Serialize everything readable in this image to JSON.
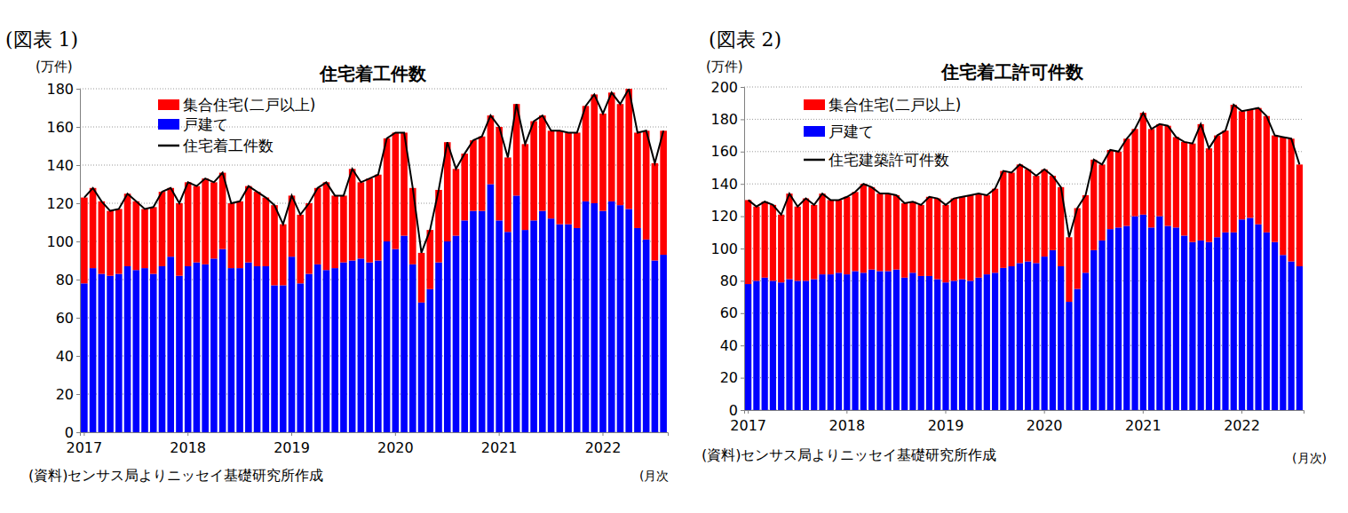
{
  "chart_data": [
    {
      "type": "bar",
      "stacked": true,
      "grid": true,
      "legend": "top-left",
      "figure_label": "(図表 1)",
      "title": "住宅着工件数",
      "y_label": "(万件)",
      "x_label": "(月次",
      "source": "(資料)センサス局よりニッセイ基礎研究所作成",
      "categories": [
        "2017",
        null,
        null,
        null,
        null,
        null,
        null,
        null,
        null,
        null,
        null,
        null,
        "2018",
        null,
        null,
        null,
        null,
        null,
        null,
        null,
        null,
        null,
        null,
        null,
        "2019",
        null,
        null,
        null,
        null,
        null,
        null,
        null,
        null,
        null,
        null,
        null,
        "2020",
        null,
        null,
        null,
        null,
        null,
        null,
        null,
        null,
        null,
        null,
        null,
        "2021",
        null,
        null,
        null,
        null,
        null,
        null,
        null,
        null,
        null,
        null,
        null,
        "2022",
        null,
        null,
        null,
        null,
        null,
        null,
        null
      ],
      "ylim": [
        0,
        180
      ],
      "yticks": [
        0,
        20,
        40,
        60,
        80,
        100,
        120,
        140,
        160,
        180
      ],
      "series": [
        {
          "name": "集合住宅(二戸以上)",
          "type": "bar",
          "color": "#ff0000",
          "values": [
            45,
            42,
            38,
            34,
            34,
            38,
            36,
            31,
            35,
            39,
            36,
            38,
            44,
            40,
            45,
            40,
            40,
            34,
            35,
            40,
            39,
            36,
            42,
            32,
            32,
            36,
            37,
            40,
            46,
            38,
            35,
            48,
            40,
            44,
            45,
            54,
            61,
            54,
            40,
            26,
            31,
            38,
            52,
            35,
            35,
            37,
            39,
            36,
            49,
            39,
            48,
            45,
            52,
            50,
            46,
            49,
            48,
            50,
            50,
            57,
            51,
            57,
            53,
            63,
            50,
            57,
            51,
            65
          ]
        },
        {
          "name": "戸建て",
          "type": "bar",
          "color": "#0000ff",
          "values": [
            78,
            86,
            83,
            82,
            83,
            87,
            85,
            86,
            83,
            87,
            92,
            82,
            87,
            89,
            88,
            91,
            96,
            86,
            86,
            89,
            87,
            87,
            77,
            77,
            92,
            78,
            83,
            88,
            85,
            86,
            89,
            90,
            91,
            89,
            90,
            100,
            96,
            103,
            88,
            68,
            75,
            89,
            100,
            103,
            111,
            116,
            116,
            130,
            111,
            105,
            124,
            106,
            111,
            116,
            112,
            109,
            109,
            107,
            121,
            120,
            116,
            121,
            119,
            117,
            107,
            101,
            90,
            93
          ]
        },
        {
          "name": "住宅着工件数",
          "type": "line",
          "color": "#000000",
          "values": [
            123,
            128,
            121,
            116,
            117,
            125,
            121,
            117,
            118,
            126,
            128,
            120,
            131,
            129,
            133,
            131,
            136,
            120,
            121,
            129,
            126,
            123,
            119,
            109,
            124,
            114,
            120,
            128,
            131,
            124,
            124,
            138,
            131,
            133,
            135,
            154,
            157,
            157,
            128,
            94,
            106,
            127,
            152,
            138,
            146,
            153,
            155,
            166,
            160,
            144,
            172,
            151,
            163,
            166,
            158,
            158,
            157,
            157,
            171,
            177,
            167,
            178,
            172,
            180,
            157,
            158,
            141,
            158
          ]
        }
      ]
    },
    {
      "type": "bar",
      "stacked": true,
      "grid": true,
      "legend": "top-left",
      "figure_label": "(図表 2)",
      "title": "住宅着工許可件数",
      "y_label": "(万件)",
      "x_label": "(月次)",
      "source": "(資料)センサス局よりニッセイ基礎研究所作成",
      "categories": [
        "2017",
        null,
        null,
        null,
        null,
        null,
        null,
        null,
        null,
        null,
        null,
        null,
        "2018",
        null,
        null,
        null,
        null,
        null,
        null,
        null,
        null,
        null,
        null,
        null,
        "2019",
        null,
        null,
        null,
        null,
        null,
        null,
        null,
        null,
        null,
        null,
        null,
        "2020",
        null,
        null,
        null,
        null,
        null,
        null,
        null,
        null,
        null,
        null,
        null,
        "2021",
        null,
        null,
        null,
        null,
        null,
        null,
        null,
        null,
        null,
        null,
        null,
        "2022",
        null,
        null,
        null,
        null,
        null,
        null,
        null
      ],
      "ylim": [
        0,
        200
      ],
      "yticks": [
        0,
        20,
        40,
        60,
        80,
        100,
        120,
        140,
        160,
        180,
        200
      ],
      "series": [
        {
          "name": "集合住宅(二戸以上)",
          "type": "bar",
          "color": "#ff0000",
          "values": [
            52,
            46,
            47,
            47,
            42,
            53,
            46,
            51,
            46,
            50,
            46,
            45,
            48,
            49,
            55,
            51,
            48,
            48,
            46,
            46,
            44,
            44,
            49,
            50,
            48,
            51,
            51,
            53,
            52,
            49,
            52,
            60,
            58,
            61,
            57,
            54,
            54,
            46,
            49,
            40,
            50,
            48,
            56,
            47,
            49,
            47,
            54,
            54,
            63,
            61,
            57,
            62,
            56,
            58,
            61,
            72,
            58,
            63,
            63,
            79,
            67,
            67,
            72,
            72,
            66,
            73,
            76,
            63
          ]
        },
        {
          "name": "戸建て",
          "type": "bar",
          "color": "#0000ff",
          "values": [
            78,
            80,
            82,
            80,
            79,
            81,
            80,
            80,
            81,
            84,
            84,
            85,
            84,
            86,
            85,
            87,
            86,
            86,
            87,
            82,
            85,
            83,
            83,
            81,
            79,
            80,
            81,
            80,
            82,
            84,
            85,
            88,
            89,
            91,
            92,
            91,
            95,
            99,
            89,
            67,
            75,
            85,
            99,
            105,
            112,
            113,
            114,
            120,
            121,
            113,
            120,
            114,
            113,
            108,
            104,
            105,
            104,
            107,
            110,
            110,
            118,
            119,
            115,
            110,
            104,
            96,
            92,
            89
          ]
        },
        {
          "name": "住宅建築許可件数",
          "type": "line",
          "color": "#000000",
          "values": [
            130,
            126,
            129,
            127,
            121,
            134,
            126,
            131,
            127,
            134,
            130,
            130,
            132,
            135,
            140,
            138,
            134,
            134,
            133,
            128,
            129,
            127,
            132,
            131,
            127,
            131,
            132,
            133,
            134,
            133,
            137,
            148,
            147,
            152,
            149,
            145,
            149,
            145,
            138,
            107,
            125,
            133,
            155,
            152,
            161,
            160,
            168,
            174,
            184,
            174,
            177,
            176,
            169,
            166,
            165,
            177,
            162,
            170,
            173,
            189,
            185,
            186,
            187,
            182,
            170,
            169,
            168,
            152
          ]
        }
      ]
    }
  ]
}
